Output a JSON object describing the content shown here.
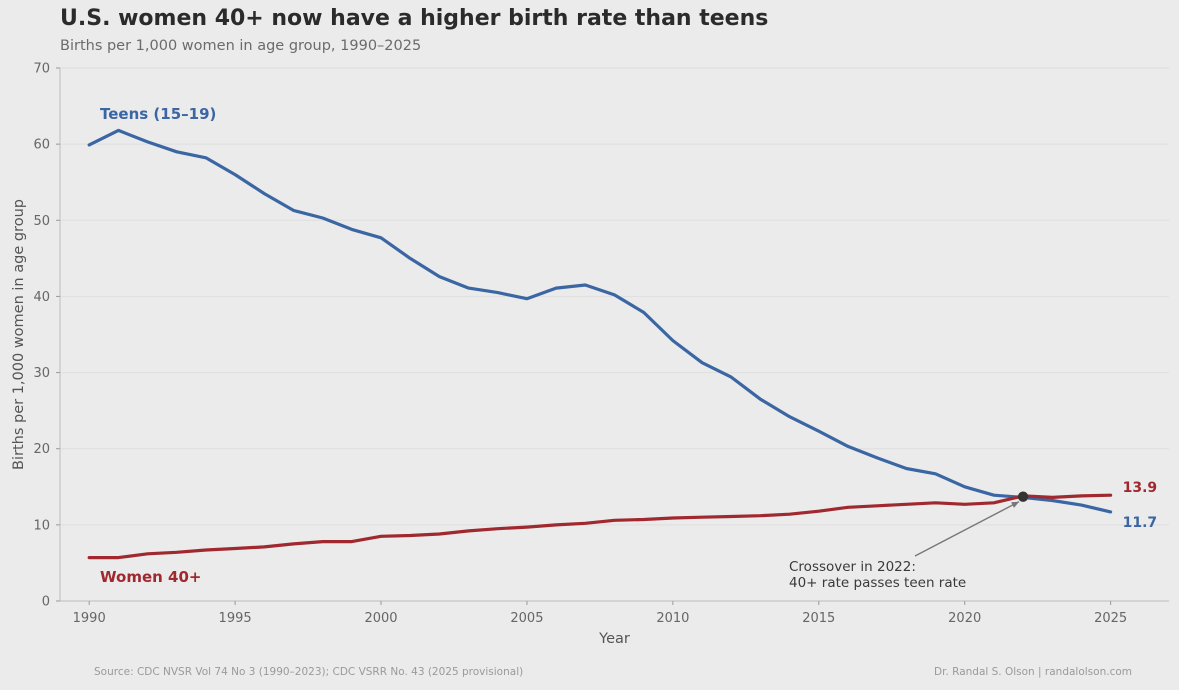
{
  "header": {
    "title": "U.S. women 40+ now have a higher birth rate than teens",
    "subtitle": "Births per 1,000 women in age group, 1990–2025"
  },
  "footer": {
    "source": "Source: CDC NVSR Vol 74 No 3 (1990–2023); CDC VSRR No. 43 (2025 provisional)",
    "credit": "Dr. Randal S. Olson  |  randalolson.com"
  },
  "chart_data": {
    "type": "line",
    "title": "U.S. women 40+ now have a higher birth rate than teens",
    "subtitle": "Births per 1,000 women in age group, 1990–2025",
    "xlabel": "Year",
    "ylabel": "Births per 1,000 women in age group",
    "xlim": [
      1989,
      2027
    ],
    "ylim": [
      0,
      70
    ],
    "x_ticks": [
      1990,
      1995,
      2000,
      2005,
      2010,
      2015,
      2020,
      2025
    ],
    "y_ticks": [
      0,
      10,
      20,
      30,
      40,
      50,
      60,
      70
    ],
    "grid": "horizontal",
    "x": [
      1990,
      1991,
      1992,
      1993,
      1994,
      1995,
      1996,
      1997,
      1998,
      1999,
      2000,
      2001,
      2002,
      2003,
      2004,
      2005,
      2006,
      2007,
      2008,
      2009,
      2010,
      2011,
      2012,
      2013,
      2014,
      2015,
      2016,
      2017,
      2018,
      2019,
      2020,
      2021,
      2022,
      2023,
      2024,
      2025
    ],
    "series": [
      {
        "name": "Teens (15–19)",
        "color": "#3a66a3",
        "values": [
          59.9,
          61.8,
          60.3,
          59.0,
          58.2,
          56.0,
          53.5,
          51.3,
          50.3,
          48.8,
          47.7,
          45.0,
          42.6,
          41.1,
          40.5,
          39.7,
          41.1,
          41.5,
          40.2,
          37.9,
          34.2,
          31.3,
          29.4,
          26.5,
          24.2,
          22.3,
          20.3,
          18.8,
          17.4,
          16.7,
          15.0,
          13.9,
          13.6,
          13.2,
          12.6,
          11.7
        ],
        "label_position": "top-left",
        "end_label": "11.7"
      },
      {
        "name": "Women 40+",
        "color": "#a0292f",
        "values": [
          5.7,
          5.7,
          6.2,
          6.4,
          6.7,
          6.9,
          7.1,
          7.5,
          7.8,
          7.8,
          8.5,
          8.6,
          8.8,
          9.2,
          9.5,
          9.7,
          10.0,
          10.2,
          10.6,
          10.7,
          10.9,
          11.0,
          11.1,
          11.2,
          11.4,
          11.8,
          12.3,
          12.5,
          12.7,
          12.9,
          12.7,
          12.9,
          13.8,
          13.6,
          13.8,
          13.9
        ],
        "label_position": "bottom-left",
        "end_label": "13.9"
      }
    ],
    "annotation": {
      "x": 2022,
      "y": 13.7,
      "text_line1": "Crossover in 2022:",
      "text_line2": "40+ rate passes teen rate"
    }
  }
}
